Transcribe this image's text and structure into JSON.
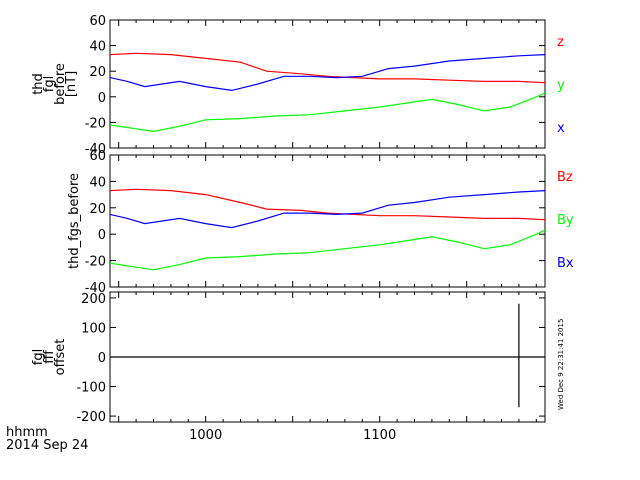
{
  "chart_data": [
    {
      "type": "line",
      "ylabel": [
        "thd",
        "fgl",
        "before",
        "[nT]"
      ],
      "ylim": [
        -40,
        60
      ],
      "yticks": [
        -40,
        -20,
        0,
        20,
        40,
        60
      ],
      "xlim": [
        945,
        1195
      ],
      "series": [
        {
          "name": "z",
          "color": "#ff0000",
          "x": [
            945,
            960,
            980,
            1000,
            1020,
            1035,
            1055,
            1070,
            1085,
            1100,
            1120,
            1140,
            1160,
            1180,
            1195
          ],
          "y": [
            33,
            34,
            33,
            30,
            27,
            20,
            18,
            16,
            15,
            14,
            14,
            13,
            12,
            12,
            11
          ]
        },
        {
          "name": "y",
          "color": "#00ff00",
          "x": [
            945,
            960,
            970,
            985,
            1000,
            1020,
            1040,
            1060,
            1080,
            1100,
            1120,
            1130,
            1145,
            1160,
            1175,
            1190,
            1195
          ],
          "y": [
            -22,
            -25,
            -27,
            -23,
            -18,
            -17,
            -15,
            -14,
            -11,
            -8,
            -4,
            -2,
            -6,
            -11,
            -8,
            0,
            3
          ]
        },
        {
          "name": "x",
          "color": "#0000ff",
          "x": [
            945,
            955,
            965,
            975,
            985,
            1000,
            1015,
            1030,
            1045,
            1060,
            1075,
            1090,
            1105,
            1120,
            1140,
            1160,
            1180,
            1195
          ],
          "y": [
            15,
            12,
            8,
            10,
            12,
            8,
            5,
            10,
            16,
            16,
            15,
            16,
            22,
            24,
            28,
            30,
            32,
            33
          ]
        }
      ]
    },
    {
      "type": "line",
      "ylabel": [
        "thd_fgs_before"
      ],
      "ylim": [
        -40,
        60
      ],
      "yticks": [
        -40,
        -20,
        0,
        20,
        40,
        60
      ],
      "xlim": [
        945,
        1195
      ],
      "series": [
        {
          "name": "Bz",
          "color": "#ff0000",
          "x": [
            945,
            960,
            980,
            1000,
            1020,
            1035,
            1055,
            1070,
            1085,
            1100,
            1120,
            1140,
            1160,
            1180,
            1195
          ],
          "y": [
            33,
            34,
            33,
            30,
            24,
            19,
            18,
            16,
            15,
            14,
            14,
            13,
            12,
            12,
            11
          ]
        },
        {
          "name": "By",
          "color": "#00ff00",
          "x": [
            945,
            960,
            970,
            985,
            1000,
            1020,
            1040,
            1060,
            1080,
            1100,
            1120,
            1130,
            1145,
            1160,
            1175,
            1190,
            1195
          ],
          "y": [
            -22,
            -25,
            -27,
            -23,
            -18,
            -17,
            -15,
            -14,
            -11,
            -8,
            -4,
            -2,
            -6,
            -11,
            -8,
            0,
            3
          ]
        },
        {
          "name": "Bx",
          "color": "#0000ff",
          "x": [
            945,
            955,
            965,
            975,
            985,
            1000,
            1015,
            1030,
            1045,
            1060,
            1075,
            1090,
            1105,
            1120,
            1140,
            1160,
            1180,
            1195
          ],
          "y": [
            15,
            12,
            8,
            10,
            12,
            8,
            5,
            10,
            16,
            16,
            15,
            16,
            22,
            24,
            28,
            30,
            32,
            33
          ]
        }
      ]
    },
    {
      "type": "line",
      "ylabel": [
        "fgl",
        "fff",
        "offset"
      ],
      "ylim": [
        -220,
        220
      ],
      "yticks": [
        -200,
        -100,
        0,
        100,
        200
      ],
      "xlim": [
        945,
        1195
      ],
      "xticks": [
        1000,
        1100
      ],
      "series": [
        {
          "name": "",
          "color": "#000000",
          "x": [
            945,
            1180,
            1180,
            1180,
            1180,
            1195
          ],
          "y": [
            0,
            0,
            180,
            -170,
            0,
            0
          ]
        }
      ]
    }
  ],
  "x_axis_label": "hhmm",
  "date_label": "2014 Sep 24",
  "side_stamp": "Wed Dec  9 22:31:41 2015"
}
